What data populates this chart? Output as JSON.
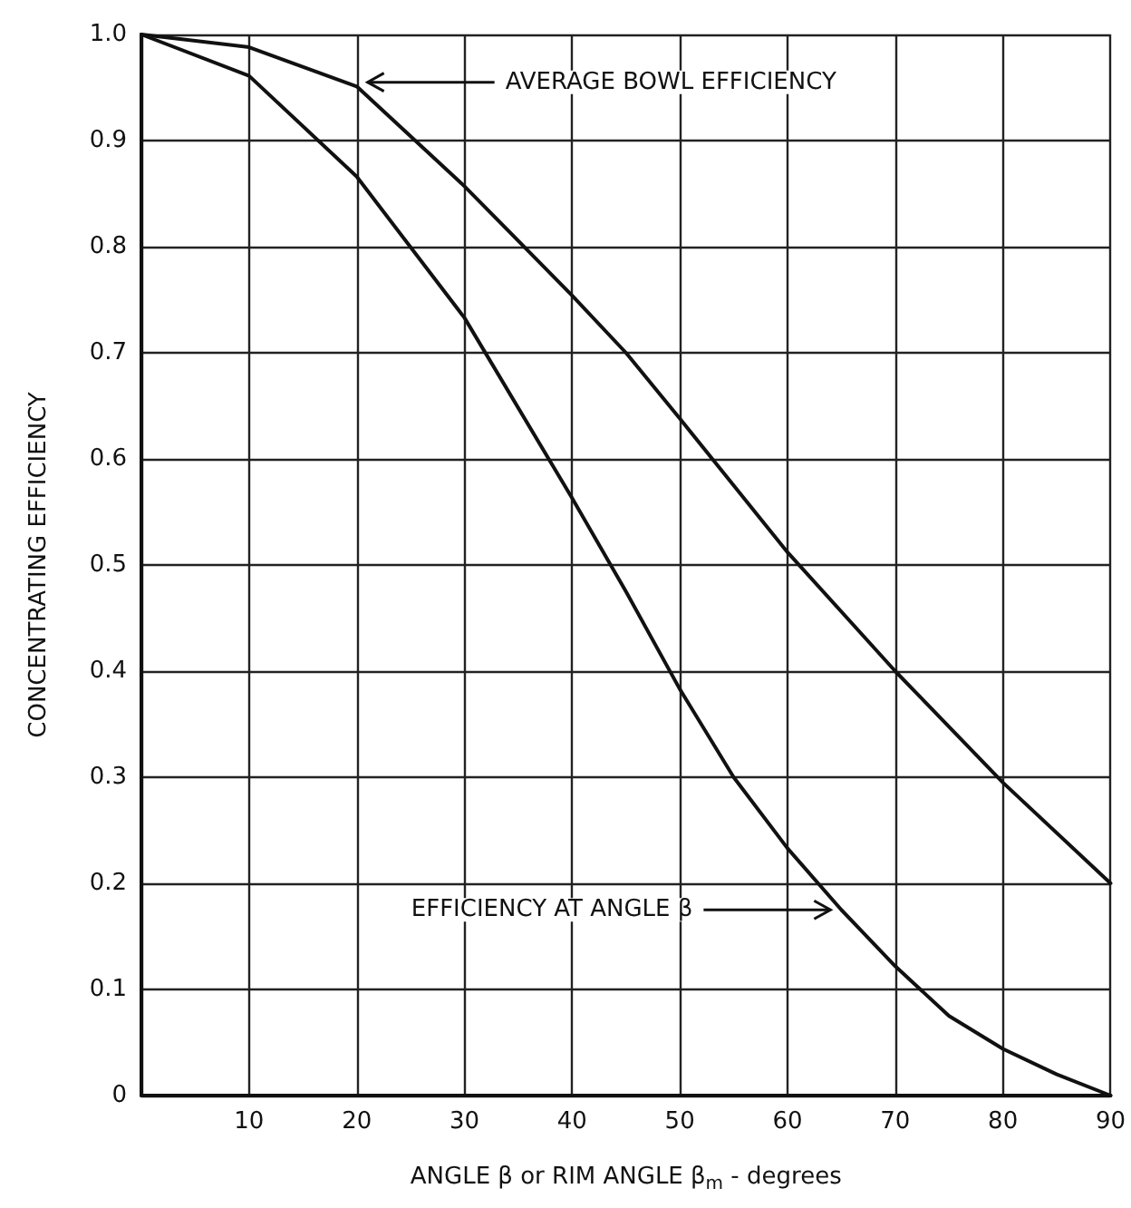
{
  "chart_data": {
    "type": "line",
    "xlabel": "ANGLE β or RIM ANGLE β$_{m}$ - degrees",
    "ylabel": "CONCENTRATING EFFICIENCY",
    "x": [
      0,
      10,
      20,
      30,
      40,
      45,
      50,
      60,
      70,
      80,
      90
    ],
    "series": [
      {
        "color": "#111111",
        "values": [
          1.0,
          0.988,
          0.951,
          0.857,
          0.754,
          0.7,
          0.638,
          0.512,
          0.4,
          0.295,
          0.2
        ]
      },
      {
        "color": "#111111",
        "x": [
          0,
          10,
          20,
          30,
          40,
          45,
          50,
          55,
          60,
          65,
          70,
          75,
          80,
          85,
          90
        ],
        "values": [
          1.0,
          0.961,
          0.866,
          0.733,
          0.563,
          0.475,
          0.383,
          0.3,
          0.233,
          0.175,
          0.122,
          0.075,
          0.044,
          0.02,
          0.0
        ]
      }
    ],
    "xlim": [
      0,
      90
    ],
    "xticks": [
      {
        "value": 0,
        "label": null
      },
      10,
      20,
      30,
      40,
      50,
      60,
      70,
      80,
      90
    ],
    "ylim": [
      0,
      1
    ],
    "yticks": [
      0,
      0.1,
      0.2,
      0.3,
      0.4,
      0.5,
      0.6,
      0.7,
      0.8,
      0.9,
      {
        "value": 1,
        "label": "1.0"
      }
    ],
    "grid": true,
    "marker": "none",
    "line_style": "solid",
    "annotations": [
      {
        "text": "AVERAGE BOWL EFFICIENCY",
        "x": 20,
        "y": 0.955
      },
      {
        "text": "EFFICIENCY AT ANGLE β",
        "x": 65,
        "y": 0.175
      }
    ]
  }
}
